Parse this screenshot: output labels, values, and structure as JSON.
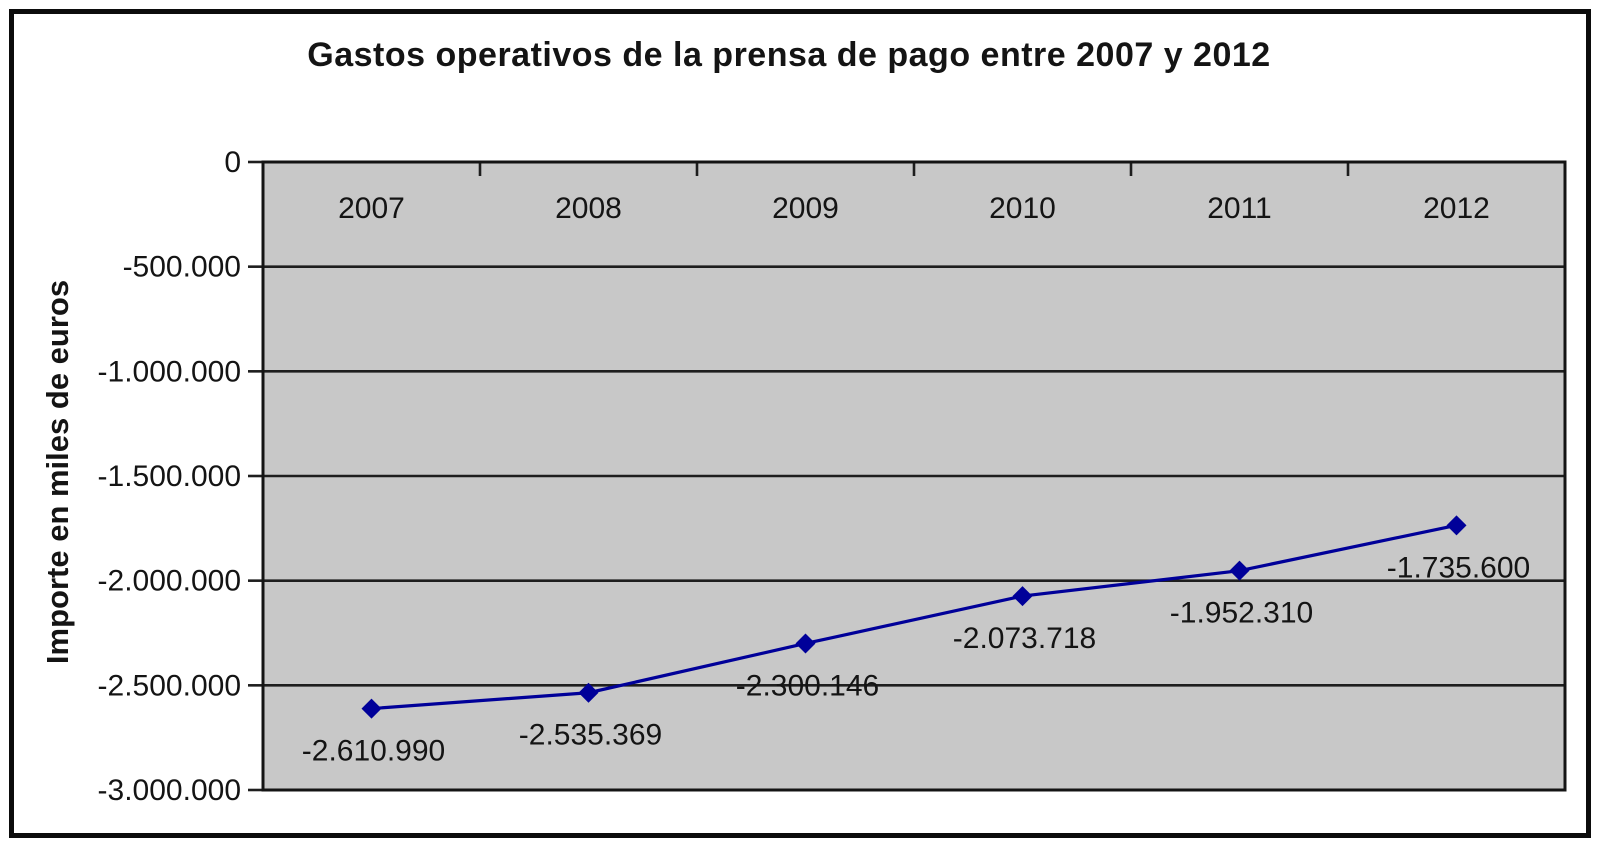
{
  "image": {
    "background": "#ffffff",
    "frame_color": "#0c0c0c"
  },
  "chart_data": {
    "type": "line",
    "title": "Gastos operativos de la prensa de pago entre 2007 y 2012",
    "xlabel": "",
    "ylabel": "Importe en miles de euros",
    "categories": [
      "2007",
      "2008",
      "2009",
      "2010",
      "2011",
      "2012"
    ],
    "series": [
      {
        "values": [
          -2610990,
          -2535369,
          -2300146,
          -2073718,
          -1952310,
          -1735600
        ],
        "point_labels": [
          "-2.610.990",
          "-2.535.369",
          "-2.300.146",
          "-2.073.718",
          "-1.952.310",
          "-1.735.600"
        ],
        "color": "#000099",
        "marker": "diamond"
      }
    ],
    "y_axis": {
      "min": -3000000,
      "max": 0,
      "step": 500000,
      "tick_labels": [
        "0",
        "-500.000",
        "-1.000.000",
        "-1.500.000",
        "-2.000.000",
        "-2.500.000",
        "-3.000.000"
      ]
    },
    "x_axis_position": "top",
    "grid": true,
    "legend": "none",
    "plot_background": "#c8c8c8",
    "axis_color": "#1e1e1e"
  }
}
